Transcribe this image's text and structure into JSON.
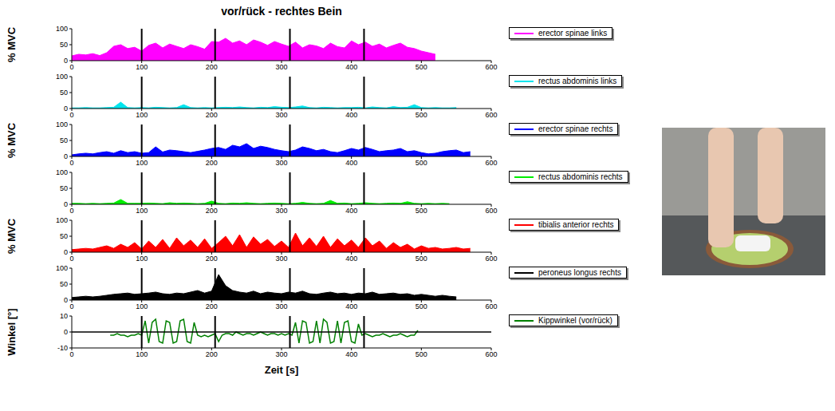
{
  "chart_data": [
    {
      "type": "area",
      "title": "vor/rück - rechtes Bein",
      "y_label": "% MVC",
      "legend": "right",
      "x": [
        0,
        10,
        20,
        30,
        40,
        50,
        60,
        70,
        80,
        90,
        100,
        110,
        120,
        130,
        140,
        150,
        160,
        170,
        180,
        190,
        200,
        210,
        220,
        230,
        240,
        250,
        260,
        270,
        280,
        290,
        300,
        310,
        320,
        330,
        340,
        350,
        360,
        370,
        380,
        390,
        400,
        410,
        420,
        430,
        440,
        450,
        460,
        470,
        480,
        490,
        500,
        510,
        520,
        530,
        540,
        550,
        560,
        570
      ],
      "series": [
        {
          "name": "erector spinae links",
          "color": "#ff00ff",
          "values": [
            15,
            20,
            18,
            22,
            16,
            25,
            45,
            50,
            38,
            42,
            30,
            48,
            55,
            40,
            52,
            45,
            38,
            50,
            44,
            36,
            60,
            58,
            70,
            55,
            62,
            50,
            65,
            58,
            48,
            60,
            52,
            45,
            58,
            40,
            50,
            46,
            38,
            55,
            44,
            40,
            62,
            50,
            58,
            45,
            52,
            40,
            48,
            55,
            42,
            38,
            30,
            25,
            20,
            null,
            null,
            null,
            null,
            null
          ]
        }
      ],
      "xlim": [
        0,
        600
      ],
      "xticks": [
        0,
        100,
        200,
        300,
        400,
        500,
        600
      ],
      "ylim": [
        0,
        100
      ],
      "yticks": [
        0,
        50,
        100
      ],
      "vlines": [
        100,
        205,
        312,
        418
      ]
    },
    {
      "type": "area",
      "legend": "right",
      "x": [
        0,
        10,
        20,
        30,
        40,
        50,
        60,
        70,
        80,
        90,
        100,
        110,
        120,
        130,
        140,
        150,
        160,
        170,
        180,
        190,
        200,
        210,
        220,
        230,
        240,
        250,
        260,
        270,
        280,
        290,
        300,
        310,
        320,
        330,
        340,
        350,
        360,
        370,
        380,
        390,
        400,
        410,
        420,
        430,
        440,
        450,
        460,
        470,
        480,
        490,
        500,
        510,
        520,
        530,
        540,
        550,
        560,
        570
      ],
      "series": [
        {
          "name": "rectus abdominis links",
          "color": "#00e5ee",
          "values": [
            2,
            2,
            3,
            2,
            2,
            3,
            4,
            20,
            3,
            2,
            3,
            2,
            4,
            3,
            2,
            3,
            12,
            3,
            2,
            3,
            2,
            3,
            4,
            3,
            5,
            3,
            2,
            4,
            3,
            6,
            4,
            3,
            5,
            8,
            3,
            2,
            4,
            3,
            2,
            3,
            3,
            4,
            2,
            5,
            3,
            2,
            6,
            3,
            4,
            12,
            3,
            2,
            3,
            2,
            2,
            3,
            null,
            null
          ]
        }
      ],
      "xlim": [
        0,
        600
      ],
      "xticks": [
        0,
        100,
        200,
        300,
        400,
        500,
        600
      ],
      "ylim": [
        0,
        100
      ],
      "yticks": [
        0,
        50,
        100
      ],
      "vlines": [
        100,
        205,
        312,
        418
      ]
    },
    {
      "type": "area",
      "y_label": "% MVC",
      "legend": "right",
      "x": [
        0,
        10,
        20,
        30,
        40,
        50,
        60,
        70,
        80,
        90,
        100,
        110,
        120,
        130,
        140,
        150,
        160,
        170,
        180,
        190,
        200,
        210,
        220,
        230,
        240,
        250,
        260,
        270,
        280,
        290,
        300,
        310,
        320,
        330,
        340,
        350,
        360,
        370,
        380,
        390,
        400,
        410,
        420,
        430,
        440,
        450,
        460,
        470,
        480,
        490,
        500,
        510,
        520,
        530,
        540,
        550,
        560,
        570
      ],
      "series": [
        {
          "name": "erector spinae rechts",
          "color": "#0000ff",
          "values": [
            5,
            8,
            10,
            8,
            12,
            15,
            10,
            18,
            12,
            15,
            10,
            12,
            30,
            14,
            20,
            18,
            15,
            12,
            16,
            20,
            25,
            28,
            22,
            35,
            30,
            40,
            25,
            32,
            28,
            22,
            18,
            15,
            20,
            30,
            25,
            18,
            22,
            15,
            12,
            18,
            25,
            20,
            28,
            22,
            15,
            18,
            20,
            25,
            15,
            18,
            12,
            8,
            10,
            15,
            18,
            20,
            12,
            15
          ]
        }
      ],
      "xlim": [
        0,
        600
      ],
      "xticks": [
        0,
        100,
        200,
        300,
        400,
        500,
        600
      ],
      "ylim": [
        0,
        100
      ],
      "yticks": [
        0,
        50,
        100
      ],
      "vlines": [
        100,
        205,
        312,
        418
      ]
    },
    {
      "type": "area",
      "legend": "right",
      "x": [
        0,
        10,
        20,
        30,
        40,
        50,
        60,
        70,
        80,
        90,
        100,
        110,
        120,
        130,
        140,
        150,
        160,
        170,
        180,
        190,
        200,
        210,
        220,
        230,
        240,
        250,
        260,
        270,
        280,
        290,
        300,
        310,
        320,
        330,
        340,
        350,
        360,
        370,
        380,
        390,
        400,
        410,
        420,
        430,
        440,
        450,
        460,
        470,
        480,
        490,
        500,
        510,
        520,
        530,
        540,
        550,
        560,
        570
      ],
      "series": [
        {
          "name": "rectus abdominis rechts",
          "color": "#00ee00",
          "values": [
            3,
            3,
            2,
            3,
            2,
            3,
            4,
            15,
            3,
            3,
            3,
            4,
            3,
            2,
            5,
            3,
            4,
            3,
            2,
            3,
            10,
            3,
            2,
            4,
            3,
            5,
            3,
            2,
            3,
            4,
            3,
            2,
            3,
            6,
            3,
            2,
            3,
            12,
            3,
            4,
            2,
            3,
            5,
            3,
            2,
            3,
            4,
            3,
            8,
            3,
            2,
            3,
            2,
            3,
            2,
            null,
            null,
            null
          ]
        }
      ],
      "xlim": [
        0,
        600
      ],
      "xticks": [
        0,
        100,
        200,
        300,
        400,
        500,
        600
      ],
      "ylim": [
        0,
        100
      ],
      "yticks": [
        0,
        50,
        100
      ],
      "vlines": [
        100,
        205,
        312,
        418
      ]
    },
    {
      "type": "area",
      "y_label": "% MVC",
      "legend": "right",
      "x": [
        0,
        10,
        20,
        30,
        40,
        50,
        60,
        70,
        80,
        90,
        100,
        110,
        120,
        130,
        140,
        150,
        160,
        170,
        180,
        190,
        200,
        210,
        220,
        230,
        240,
        250,
        260,
        270,
        280,
        290,
        300,
        310,
        320,
        330,
        340,
        350,
        360,
        370,
        380,
        390,
        400,
        410,
        420,
        430,
        440,
        450,
        460,
        470,
        480,
        490,
        500,
        510,
        520,
        530,
        540,
        550,
        560,
        570
      ],
      "series": [
        {
          "name": "tibialis anterior rechts",
          "color": "#ff0000",
          "values": [
            8,
            10,
            12,
            10,
            15,
            20,
            12,
            25,
            15,
            30,
            10,
            35,
            15,
            40,
            12,
            45,
            20,
            38,
            15,
            42,
            12,
            30,
            50,
            20,
            55,
            15,
            48,
            25,
            40,
            18,
            35,
            15,
            60,
            20,
            45,
            18,
            50,
            15,
            42,
            20,
            38,
            15,
            45,
            20,
            35,
            12,
            30,
            15,
            25,
            10,
            20,
            12,
            15,
            10,
            12,
            15,
            10,
            12
          ]
        }
      ],
      "xlim": [
        0,
        600
      ],
      "xticks": [
        0,
        100,
        200,
        300,
        400,
        500,
        600
      ],
      "ylim": [
        0,
        100
      ],
      "yticks": [
        0,
        50,
        100
      ],
      "vlines": [
        100,
        205,
        312,
        418
      ]
    },
    {
      "type": "area",
      "legend": "right",
      "x": [
        0,
        10,
        20,
        30,
        40,
        50,
        60,
        70,
        80,
        90,
        100,
        110,
        120,
        130,
        140,
        150,
        160,
        170,
        180,
        190,
        200,
        210,
        220,
        230,
        240,
        250,
        260,
        270,
        280,
        290,
        300,
        310,
        320,
        330,
        340,
        350,
        360,
        370,
        380,
        390,
        400,
        410,
        420,
        430,
        440,
        450,
        460,
        470,
        480,
        490,
        500,
        510,
        520,
        530,
        540,
        550,
        560,
        570
      ],
      "series": [
        {
          "name": "peroneus longus rechts",
          "color": "#000000",
          "values": [
            8,
            10,
            12,
            10,
            12,
            15,
            18,
            20,
            22,
            18,
            20,
            22,
            25,
            20,
            18,
            22,
            20,
            25,
            30,
            22,
            28,
            80,
            45,
            30,
            25,
            22,
            28,
            20,
            25,
            22,
            20,
            25,
            22,
            28,
            20,
            18,
            22,
            25,
            20,
            22,
            18,
            22,
            20,
            25,
            18,
            20,
            22,
            18,
            20,
            15,
            18,
            15,
            12,
            15,
            12,
            10,
            null,
            null
          ]
        }
      ],
      "xlim": [
        0,
        600
      ],
      "xticks": [
        0,
        100,
        200,
        300,
        400,
        500,
        600
      ],
      "ylim": [
        0,
        100
      ],
      "yticks": [
        0,
        50,
        100
      ],
      "vlines": [
        100,
        205,
        312,
        418
      ]
    },
    {
      "type": "line",
      "y_label": "Winkel [°]",
      "x_label": "Zeit [s]",
      "legend": "right",
      "x": [
        55,
        60,
        65,
        70,
        75,
        80,
        85,
        90,
        95,
        100,
        105,
        110,
        115,
        120,
        125,
        130,
        135,
        140,
        145,
        150,
        155,
        160,
        165,
        170,
        175,
        180,
        185,
        190,
        195,
        200,
        205,
        210,
        215,
        220,
        225,
        230,
        235,
        240,
        245,
        250,
        255,
        260,
        265,
        270,
        275,
        280,
        285,
        290,
        295,
        300,
        305,
        310,
        315,
        320,
        325,
        330,
        335,
        340,
        345,
        350,
        355,
        360,
        365,
        370,
        375,
        380,
        385,
        390,
        395,
        400,
        405,
        410,
        415,
        420,
        425,
        430,
        435,
        440,
        445,
        450,
        455,
        460,
        465,
        470,
        475,
        480,
        485,
        490,
        495
      ],
      "series": [
        {
          "name": "Kippwinkel (vor/rück)",
          "color": "#008000",
          "values": [
            -2,
            -2,
            -1,
            -2,
            -2,
            -3,
            -2,
            -2,
            -1,
            -2,
            7,
            -7,
            6,
            8,
            -6,
            -7,
            7,
            6,
            -7,
            -6,
            7,
            8,
            -6,
            -7,
            6,
            -2,
            -3,
            -2,
            -3,
            -2,
            -1,
            -6,
            -2,
            -1,
            -1,
            -2,
            0,
            -1,
            -2,
            -1,
            -1,
            -2,
            -1,
            0,
            -1,
            -2,
            -1,
            -1,
            -2,
            -1,
            -2,
            -1,
            -2,
            6,
            -7,
            7,
            6,
            -7,
            -6,
            7,
            -7,
            8,
            6,
            -7,
            -6,
            7,
            -7,
            6,
            7,
            -6,
            -7,
            5,
            -2,
            -1,
            -2,
            -3,
            -2,
            -2,
            -1,
            -2,
            -3,
            -2,
            -2,
            -1,
            -2,
            -3,
            -2,
            -2,
            1
          ]
        }
      ],
      "xlim": [
        0,
        600
      ],
      "xticks": [
        0,
        100,
        200,
        300,
        400,
        500,
        600
      ],
      "ylim": [
        -10,
        10
      ],
      "yticks": [
        -10,
        0,
        10
      ],
      "vlines": [
        100,
        205,
        312,
        418
      ],
      "hlines": [
        0
      ]
    }
  ]
}
